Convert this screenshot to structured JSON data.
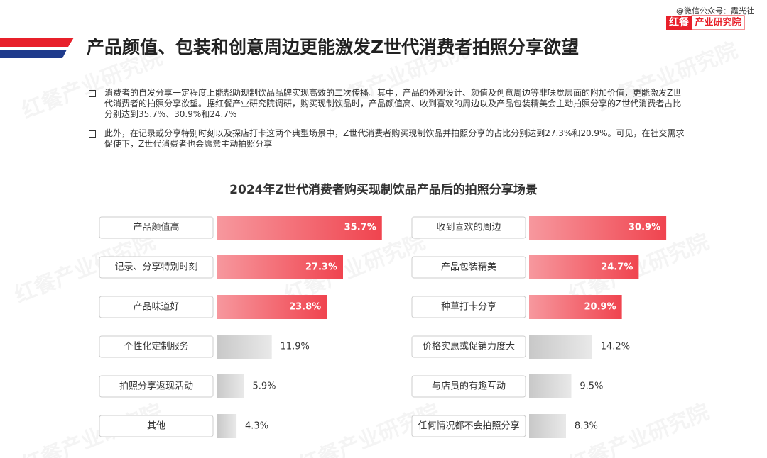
{
  "header": {
    "title": "产品颜值、包装和创意周边更能激发Z世代消费者拍照分享欲望",
    "source": "@微信公众号：霞光社",
    "logo_left": "红餐",
    "logo_right": "产业研究院"
  },
  "bullets": [
    "消费者的自发分享一定程度上能帮助现制饮品品牌实现高效的二次传播。其中，产品的外观设计、颜值及创意周边等非味觉层面的附加价值，更能激发Z世代消费者的拍照分享欲望。据红餐产业研究院调研，购买现制饮品时，产品颜值高、收到喜欢的周边以及产品包装精美会主动拍照分享的Z世代消费者占比分别达到35.7%、30.9%和24.7%",
    "此外，在记录或分享特别时刻以及探店打卡这两个典型场景中，Z世代消费者购买现制饮品并拍照分享的占比分别达到27.3%和20.9%。可见，在社交需求促使下，Z世代消费者也会愿意主动拍照分享"
  ],
  "watermark": "红餐产业研究院",
  "chart_data": [
    {
      "type": "bar",
      "title": "2024年Z世代消费者购买现制饮品产品后的拍照分享场景",
      "categories": [
        "产品颜值高",
        "记录、分享特别时刻",
        "产品味道好",
        "个性化定制服务",
        "拍照分享返现活动",
        "其他"
      ],
      "values": [
        35.7,
        27.3,
        23.8,
        11.9,
        5.9,
        4.3
      ],
      "value_labels": [
        "35.7%",
        "27.3%",
        "23.8%",
        "11.9%",
        "5.9%",
        "4.3%"
      ],
      "colors": [
        "#f0444f",
        "#f0444f",
        "#f0444f",
        "#c8c8c8",
        "#c8c8c8",
        "#c8c8c8"
      ]
    },
    {
      "type": "bar",
      "categories": [
        "收到喜欢的周边",
        "产品包装精美",
        "种草打卡分享",
        "价格实惠或促销力度大",
        "与店员的有趣互动",
        "任何情况都不会拍照分享"
      ],
      "values": [
        30.9,
        24.7,
        20.9,
        14.2,
        9.5,
        8.3
      ],
      "value_labels": [
        "30.9%",
        "24.7%",
        "20.9%",
        "14.2%",
        "9.5%",
        "8.3%"
      ],
      "colors": [
        "#f0444f",
        "#f0444f",
        "#f0444f",
        "#c8c8c8",
        "#c8c8c8",
        "#c8c8c8"
      ]
    }
  ]
}
